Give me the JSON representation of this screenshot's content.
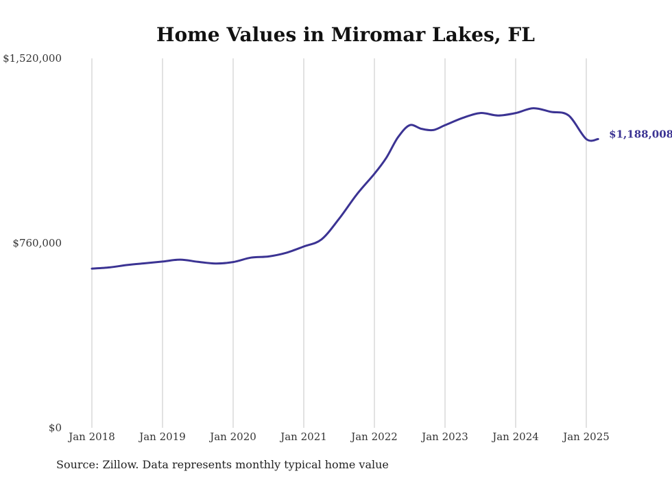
{
  "colors": {
    "line": "#3b3393",
    "grid": "#c4c4c4",
    "text": "#333333"
  },
  "source": "Source: Zillow. Data represents monthly typical home value",
  "chart_data": {
    "type": "line",
    "title": "Home Values in Miromar Lakes, FL",
    "xlabel": "",
    "ylabel": "",
    "ylim": [
      0,
      1520000
    ],
    "yticks": [
      0,
      760000,
      1520000
    ],
    "ytick_labels": [
      "$0",
      "$760,000",
      "$1,520,000"
    ],
    "xticks": [
      "2018-01",
      "2019-01",
      "2020-01",
      "2021-01",
      "2022-01",
      "2023-01",
      "2024-01",
      "2025-01"
    ],
    "xtick_labels": [
      "Jan 2018",
      "Jan 2019",
      "Jan 2020",
      "Jan 2021",
      "Jan 2022",
      "Jan 2023",
      "Jan 2024",
      "Jan 2025"
    ],
    "grid": "vertical",
    "end_label": "$1,188,008",
    "series": [
      {
        "x": [
          "2018-01",
          "2018-04",
          "2018-07",
          "2018-10",
          "2019-01",
          "2019-04",
          "2019-07",
          "2019-10",
          "2020-01",
          "2020-04",
          "2020-07",
          "2020-10",
          "2021-01",
          "2021-04",
          "2021-07",
          "2021-10",
          "2022-01",
          "2022-03",
          "2022-05",
          "2022-07",
          "2022-09",
          "2022-11",
          "2023-01",
          "2023-04",
          "2023-07",
          "2023-10",
          "2024-01",
          "2024-04",
          "2024-07",
          "2024-10",
          "2025-01",
          "2025-03"
        ],
        "values": [
          655000,
          660000,
          670000,
          677000,
          684000,
          692000,
          683000,
          676000,
          682000,
          700000,
          705000,
          720000,
          746000,
          775000,
          860000,
          960000,
          1045000,
          1110000,
          1195000,
          1245000,
          1230000,
          1225000,
          1245000,
          1275000,
          1295000,
          1285000,
          1295000,
          1315000,
          1300000,
          1285000,
          1188008,
          1188008
        ]
      }
    ]
  }
}
